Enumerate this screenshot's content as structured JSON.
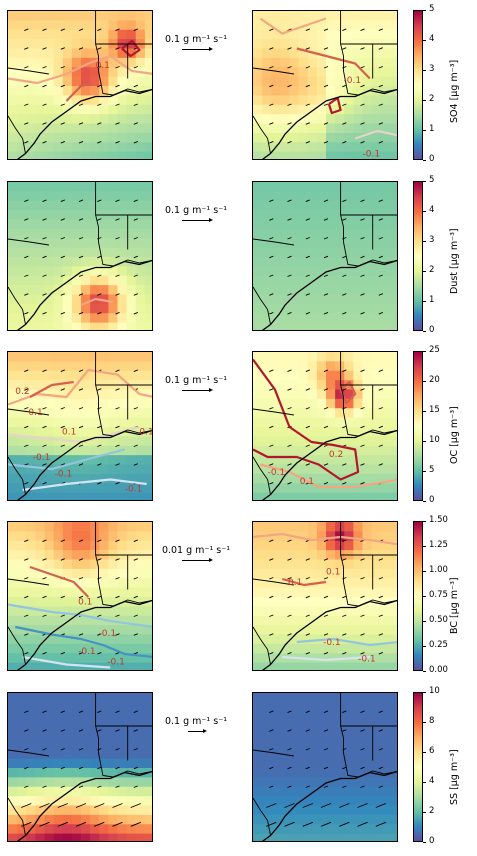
{
  "chart_data": [
    {
      "type": "heatmap",
      "row": 0,
      "variable": "SO4",
      "colorbar_label": "SO4 [μg m⁻³]",
      "clim": [
        0,
        5
      ],
      "ticks": [
        0,
        1,
        2,
        3,
        4,
        5
      ],
      "ref_arrow": "0.1 g m⁻¹ s⁻¹",
      "contour_labels_left": [
        "0.1"
      ],
      "contour_labels_right": [
        "-0.1",
        "-0.1"
      ]
    },
    {
      "type": "heatmap",
      "row": 1,
      "variable": "Dust",
      "colorbar_label": "Dust [μg m⁻³]",
      "clim": [
        0,
        5
      ],
      "ticks": [
        0,
        1,
        2,
        3,
        4,
        5
      ],
      "ref_arrow": "0.1 g m⁻¹ s⁻¹",
      "contour_labels_left": [],
      "contour_labels_right": []
    },
    {
      "type": "heatmap",
      "row": 2,
      "variable": "OC",
      "colorbar_label": "OC [μg m⁻³]",
      "clim": [
        0,
        25
      ],
      "ticks": [
        0,
        5,
        10,
        15,
        20,
        25
      ],
      "ref_arrow": "0.1 g m⁻¹ s⁻¹",
      "contour_labels_left": [
        "0.2",
        "0.1",
        "0.1",
        "-0.1",
        "-0.1",
        "-0.1",
        "0.1"
      ],
      "contour_labels_right": [
        "0.2",
        "0.1",
        "-0.1"
      ]
    },
    {
      "type": "heatmap",
      "row": 3,
      "variable": "BC",
      "colorbar_label": "BC [μg m⁻³]",
      "clim": [
        0,
        1.5
      ],
      "ticks": [
        "0.00",
        "0.25",
        "0.50",
        "0.75",
        "1.00",
        "1.25",
        "1.50"
      ],
      "ref_arrow": "0.01 g m⁻¹ s⁻¹",
      "contour_labels_left": [
        "0.1",
        "-0.1",
        "-0.1",
        "-0.1"
      ],
      "contour_labels_right": [
        "0.1",
        "0.1",
        "-0.1",
        "-0.1"
      ]
    },
    {
      "type": "heatmap",
      "row": 4,
      "variable": "SS",
      "colorbar_label": "SS [μg m⁻³]",
      "clim": [
        0,
        10
      ],
      "ticks": [
        0,
        2,
        4,
        6,
        8,
        10
      ],
      "ref_arrow": "0.1 g m⁻¹ s⁻¹",
      "contour_labels_left": [],
      "contour_labels_right": []
    }
  ]
}
